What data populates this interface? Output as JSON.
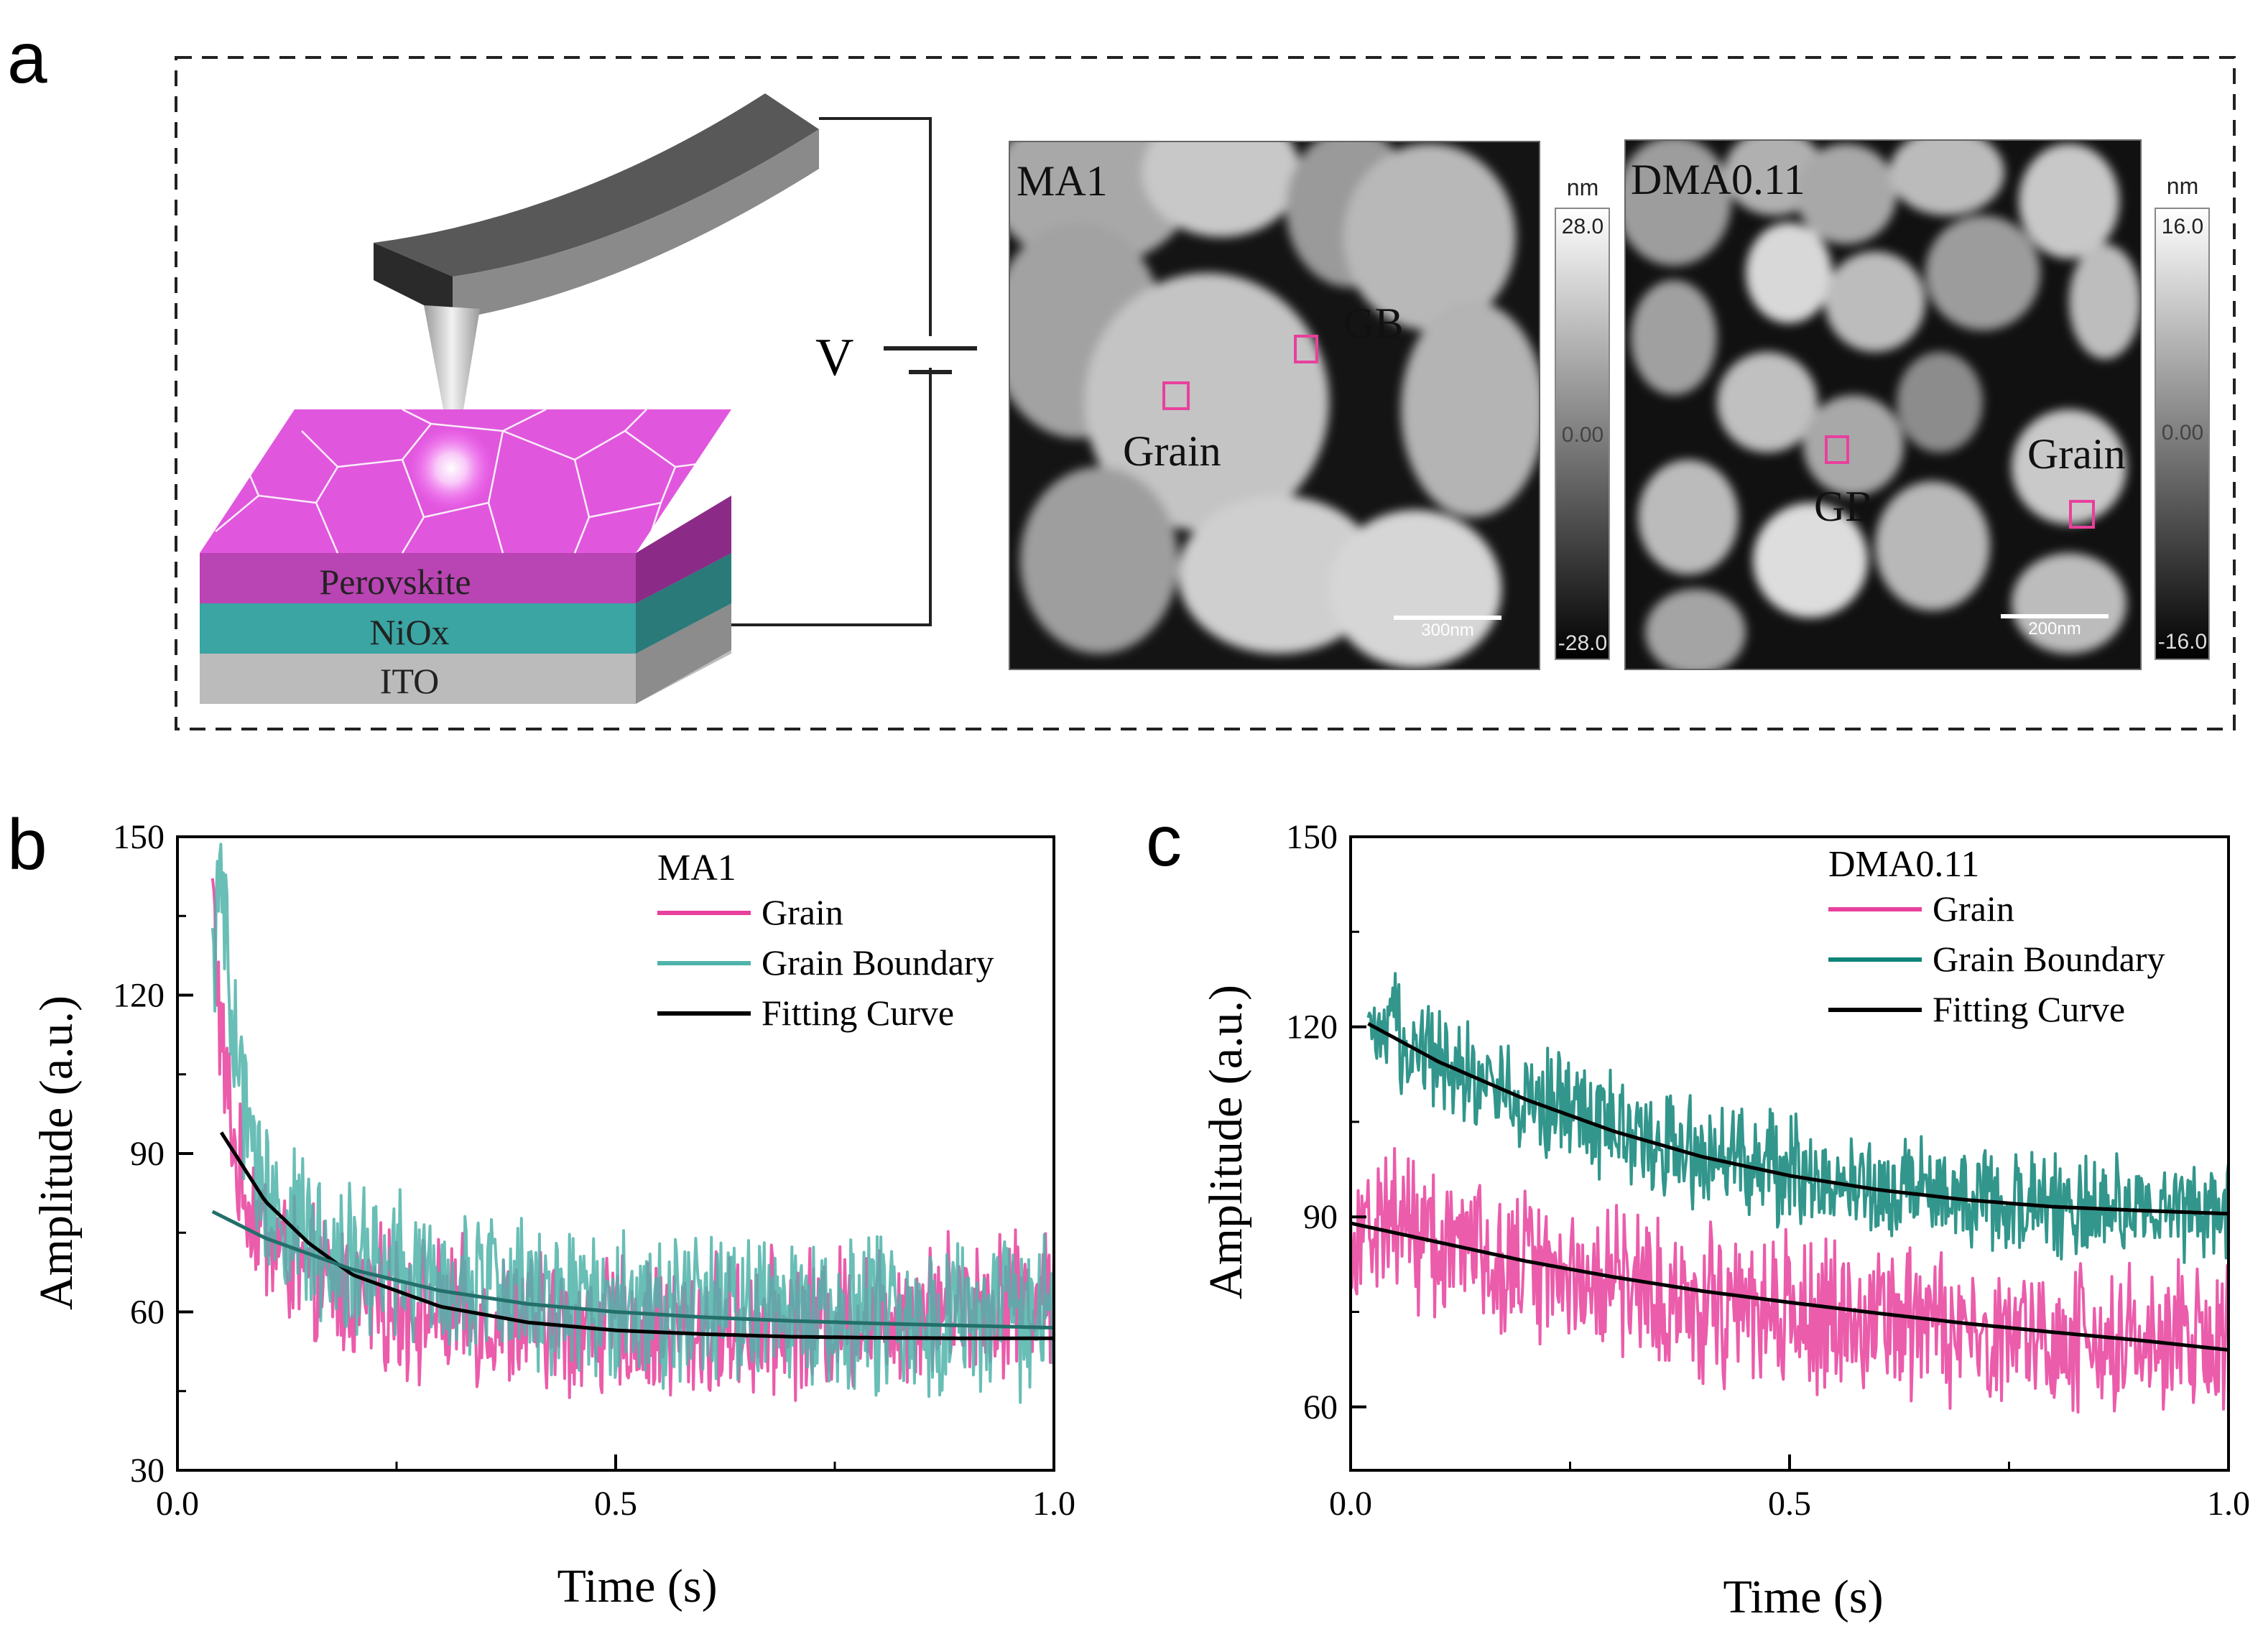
{
  "panel_a": {
    "label": "a",
    "voltage_label": "V",
    "layers": [
      "Perovskite",
      "NiOx",
      "ITO"
    ],
    "afm_images": [
      {
        "sample": "MA1",
        "gb_label": "GB",
        "grain_label": "Grain",
        "unit": "nm",
        "scale_max": "28.0",
        "scale_mid": "0.00",
        "scale_min": "-28.0",
        "scalebar": "300nm"
      },
      {
        "sample": "DMA0.11",
        "gb_label": "GB",
        "grain_label": "Grain",
        "unit": "nm",
        "scale_max": "16.0",
        "scale_mid": "0.00",
        "scale_min": "-16.0",
        "scalebar": "200nm"
      }
    ]
  },
  "chart_data": [
    {
      "panel": "b",
      "type": "line",
      "legend_title": "MA1",
      "xlabel": "Time (s)",
      "ylabel": "Amplitude (a.u.)",
      "xlim": [
        0.0,
        1.0
      ],
      "ylim": [
        30,
        150
      ],
      "xticks": [
        "0.0",
        "0.5",
        "1.0"
      ],
      "yticks": [
        "30",
        "60",
        "90",
        "120",
        "150"
      ],
      "legend_position": "top-right",
      "series": [
        {
          "name": "Grain",
          "color": "#e8409c",
          "style": "noisy",
          "x": [
            0.04,
            0.05,
            0.07,
            0.1,
            0.15,
            0.2,
            0.3,
            0.4,
            0.5,
            0.6,
            0.7,
            0.8,
            0.9,
            1.0
          ],
          "y": [
            140,
            110,
            85,
            75,
            66,
            63,
            60,
            58,
            57,
            57,
            58,
            60,
            62,
            63
          ],
          "noise": 11
        },
        {
          "name": "Grain Boundary",
          "color": "#4fb3a9",
          "style": "noisy",
          "x": [
            0.04,
            0.05,
            0.06,
            0.08,
            0.1,
            0.15,
            0.2,
            0.3,
            0.4,
            0.5,
            0.6,
            0.7,
            0.8,
            0.9,
            1.0
          ],
          "y": [
            125,
            145,
            115,
            95,
            82,
            74,
            70,
            66,
            64,
            62,
            61,
            60,
            60,
            59,
            59
          ],
          "noise": 12
        },
        {
          "name": "Fitting Curve",
          "color": "#000000",
          "style": "smooth",
          "x": [
            0.05,
            0.1,
            0.15,
            0.2,
            0.3,
            0.4,
            0.5,
            0.6,
            0.7,
            0.8,
            0.9,
            1.0
          ],
          "y": [
            94,
            81,
            73,
            67,
            61,
            58,
            56.5,
            55.8,
            55.3,
            55.1,
            55,
            55
          ]
        },
        {
          "name": "",
          "color": "#236f6a",
          "style": "smooth",
          "x": [
            0.04,
            0.1,
            0.2,
            0.3,
            0.4,
            0.5,
            0.6,
            0.7,
            0.8,
            0.9,
            1.0
          ],
          "y": [
            79,
            74,
            68,
            64,
            61.5,
            60,
            59,
            58.3,
            57.8,
            57.4,
            57
          ]
        }
      ]
    },
    {
      "panel": "c",
      "type": "line",
      "legend_title": "DMA0.11",
      "xlabel": "Time (s)",
      "ylabel": "Amplitude (a.u.)",
      "xlim": [
        0.0,
        1.0
      ],
      "ylim": [
        50,
        150
      ],
      "xticks": [
        "0.0",
        "0.5",
        "1.0"
      ],
      "yticks": [
        "60",
        "90",
        "120",
        "150"
      ],
      "legend_position": "top-right",
      "series": [
        {
          "name": "Grain",
          "color": "#e8409c",
          "style": "noisy",
          "x": [
            0.0,
            0.05,
            0.1,
            0.2,
            0.3,
            0.4,
            0.5,
            0.6,
            0.7,
            0.8,
            0.9,
            1.0
          ],
          "y": [
            88,
            90,
            86,
            83,
            80,
            77,
            75,
            73,
            72,
            71,
            70,
            70
          ],
          "noise": 10
        },
        {
          "name": "Grain Boundary",
          "color": "#0e8478",
          "style": "noisy",
          "x": [
            0.02,
            0.05,
            0.1,
            0.2,
            0.3,
            0.4,
            0.5,
            0.6,
            0.7,
            0.8,
            0.9,
            1.0
          ],
          "y": [
            116,
            119,
            115,
            109,
            104,
            100,
            97,
            95,
            93,
            92,
            91,
            91
          ],
          "noise": 7
        },
        {
          "name": "Fitting Curve",
          "color": "#000000",
          "style": "smooth",
          "x": [
            0.02,
            0.1,
            0.2,
            0.3,
            0.4,
            0.5,
            0.6,
            0.7,
            0.8,
            0.9,
            1.0
          ],
          "y": [
            120.5,
            114.5,
            108.5,
            103.5,
            99.5,
            96.5,
            94.3,
            92.7,
            91.6,
            91,
            90.5
          ]
        },
        {
          "name": "",
          "color": "#000000",
          "style": "smooth",
          "x": [
            0.0,
            0.1,
            0.2,
            0.3,
            0.4,
            0.5,
            0.6,
            0.7,
            0.8,
            0.9,
            1.0
          ],
          "y": [
            89,
            86,
            83,
            80.5,
            78.3,
            76.5,
            74.8,
            73.2,
            71.8,
            70.5,
            69
          ]
        }
      ]
    }
  ]
}
